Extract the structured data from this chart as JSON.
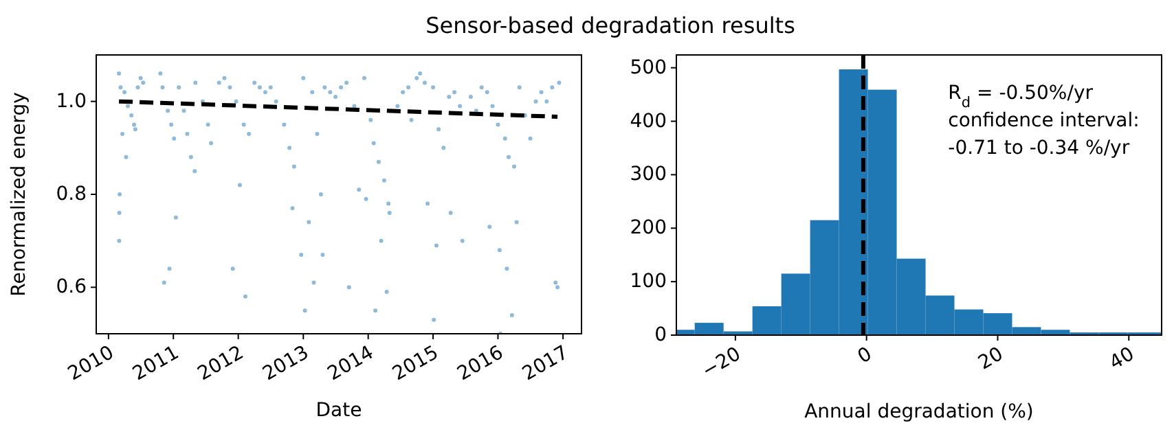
{
  "chart_data": [
    {
      "type": "scatter",
      "title": "Sensor-based degradation results",
      "xlabel": "Date",
      "ylabel": "Renormalized energy",
      "xlim": [
        "2009-10-24",
        "2017-04-15"
      ],
      "xticks": [
        "2010",
        "2011",
        "2012",
        "2013",
        "2014",
        "2015",
        "2016",
        "2017"
      ],
      "ylim": [
        0.5,
        1.1
      ],
      "yticks": [
        0.6,
        0.8,
        {
          "value": 1.0,
          "label": "1.0"
        }
      ],
      "grid": false,
      "series": [
        {
          "type": "scatter",
          "color": "#1f77b4",
          "marker": "circle",
          "x": [
            "2010-03-01",
            "2010-03-05",
            "2010-03-03",
            "2010-03-02",
            "2010-03-10",
            "2010-03-20",
            "2010-04-01",
            "2010-04-10",
            "2010-04-20",
            "2010-05-10",
            "2010-05-25",
            "2010-06-01",
            "2010-06-15",
            "2010-07-01",
            "2010-07-15",
            "2010-10-20",
            "2010-11-01",
            "2010-11-10",
            "2010-12-01",
            "2010-12-10",
            "2010-12-20",
            "2011-01-05",
            "2011-01-15",
            "2011-02-01",
            "2011-03-01",
            "2011-03-20",
            "2011-04-10",
            "2011-05-01",
            "2011-05-05",
            "2011-06-15",
            "2011-07-15",
            "2011-08-01",
            "2011-09-15",
            "2011-10-15",
            "2011-11-15",
            "2011-12-01",
            "2011-12-20",
            "2012-01-10",
            "2012-02-01",
            "2012-02-10",
            "2012-03-01",
            "2012-04-01",
            "2012-05-01",
            "2012-06-01",
            "2012-07-01",
            "2012-08-01",
            "2012-09-15",
            "2012-10-15",
            "2012-11-01",
            "2012-11-10",
            "2012-12-20",
            "2013-01-01",
            "2013-01-10",
            "2013-02-01",
            "2013-02-20",
            "2013-03-01",
            "2013-03-20",
            "2013-04-10",
            "2013-04-20",
            "2013-05-01",
            "2013-06-01",
            "2013-07-01",
            "2013-08-01",
            "2013-09-01",
            "2013-09-15",
            "2013-10-15",
            "2013-11-10",
            "2013-12-10",
            "2013-12-20",
            "2014-01-15",
            "2014-02-01",
            "2014-02-10",
            "2014-03-01",
            "2014-03-15",
            "2014-04-01",
            "2014-04-15",
            "2014-04-25",
            "2014-05-01",
            "2014-06-15",
            "2014-07-15",
            "2014-08-15",
            "2014-09-01",
            "2014-10-01",
            "2014-10-20",
            "2014-11-15",
            "2014-12-01",
            "2015-01-01",
            "2015-01-05",
            "2015-01-20",
            "2015-02-01",
            "2015-03-01",
            "2015-04-01",
            "2015-04-10",
            "2015-05-01",
            "2015-06-01",
            "2015-06-15",
            "2015-08-01",
            "2015-09-01",
            "2015-10-01",
            "2015-11-01",
            "2015-11-15",
            "2015-12-01",
            "2016-01-01",
            "2016-01-10",
            "2016-01-15",
            "2016-02-10",
            "2016-02-20",
            "2016-03-01",
            "2016-03-20",
            "2016-04-01",
            "2016-04-15",
            "2016-05-01",
            "2016-06-01",
            "2016-07-01",
            "2016-08-01",
            "2016-09-01",
            "2016-10-01",
            "2016-11-01",
            "2016-11-20",
            "2016-12-01",
            "2016-12-10"
          ],
          "values": [
            1.06,
            0.8,
            0.76,
            0.7,
            1.03,
            0.93,
            1.02,
            0.88,
            0.99,
            0.97,
            0.95,
            0.94,
            1.03,
            1.05,
            1.04,
            1.06,
            1.03,
            0.61,
            0.98,
            0.64,
            0.95,
            0.92,
            0.75,
            1.03,
            0.98,
            0.93,
            0.88,
            0.85,
            1.04,
            1.0,
            0.95,
            0.91,
            1.04,
            1.05,
            1.03,
            0.64,
            1.0,
            0.82,
            0.95,
            0.58,
            0.93,
            1.04,
            1.03,
            1.02,
            1.03,
            1.0,
            0.95,
            0.9,
            0.77,
            0.86,
            0.67,
            1.05,
            0.55,
            0.74,
            1.02,
            0.61,
            0.93,
            0.8,
            0.67,
            1.03,
            1.02,
            1.01,
            1.03,
            1.04,
            0.6,
            0.99,
            0.81,
            1.05,
            0.79,
            0.96,
            0.91,
            0.55,
            0.87,
            0.7,
            0.83,
            0.59,
            0.78,
            0.76,
            0.99,
            1.02,
            1.03,
            0.96,
            1.05,
            1.06,
            1.04,
            0.78,
            1.03,
            0.53,
            0.69,
            0.94,
            0.9,
            1.01,
            0.76,
            1.02,
            0.99,
            0.7,
            1.01,
            0.98,
            1.03,
            1.02,
            0.73,
            0.99,
            0.95,
            0.68,
            0.5,
            0.92,
            0.64,
            0.88,
            0.54,
            0.86,
            0.74,
            1.03,
            0.97,
            0.92,
            1.0,
            1.02,
            1.0,
            1.03,
            0.61,
            0.6,
            1.04
          ]
        },
        {
          "type": "line",
          "color": "#000000",
          "line_style": "dashed",
          "x": [
            "2010-03-01",
            "2016-12-01"
          ],
          "values": [
            1.0,
            0.967
          ]
        }
      ]
    },
    {
      "type": "histogram",
      "xlabel": "Annual degradation (%)",
      "color": "#1f77b4",
      "bins": [
        -29,
        -26.2,
        -21.8,
        -17.4,
        -13.0,
        -8.6,
        -4.2,
        0.2,
        4.6,
        9.0,
        13.4,
        17.8,
        22.2,
        26.6,
        31.0,
        35.4,
        39.8,
        45
      ],
      "values": [
        10,
        23,
        7,
        54,
        115,
        215,
        497,
        459,
        143,
        74,
        48,
        41,
        15,
        10,
        5,
        5,
        5
      ],
      "xlim": [
        -29,
        45
      ],
      "xticks": [
        {
          "value": -20,
          "label": "−20"
        },
        0,
        20,
        40
      ],
      "ylim": [
        0,
        524
      ],
      "yticks": [
        0,
        100,
        200,
        300,
        400,
        500
      ],
      "grid": false,
      "ref_lines": [
        {
          "axis": "x",
          "value": -0.5,
          "color": "#000000",
          "line_style": "dashed"
        }
      ],
      "annotations": [
        "R$_{d}$ = -0.50%/yr",
        "confidence interval:",
        "-0.71 to -0.34 %/yr"
      ]
    }
  ]
}
